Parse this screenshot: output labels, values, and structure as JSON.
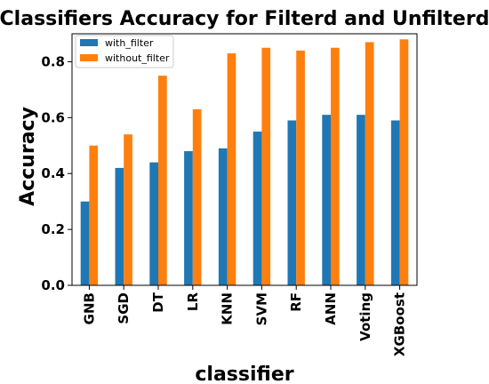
{
  "chart_data": {
    "type": "bar",
    "title": "Classifiers Accuracy for Filterd and Unfilterd",
    "xlabel": "classifier",
    "ylabel": "Accuracy",
    "categories": [
      "GNB",
      "SGD",
      "DT",
      "LR",
      "KNN",
      "SVM",
      "RF",
      "ANN",
      "Voting",
      "XGBoost"
    ],
    "series": [
      {
        "name": "with_filter",
        "color": "#1f77b4",
        "values": [
          0.3,
          0.42,
          0.44,
          0.48,
          0.49,
          0.55,
          0.59,
          0.61,
          0.61,
          0.59
        ]
      },
      {
        "name": "without_filter",
        "color": "#ff7f0e",
        "values": [
          0.5,
          0.54,
          0.75,
          0.63,
          0.83,
          0.85,
          0.84,
          0.85,
          0.87,
          0.88
        ]
      }
    ],
    "ylim": [
      0,
      0.9
    ],
    "yticks": [
      "0.0",
      "0.2",
      "0.4",
      "0.6",
      "0.8"
    ],
    "legend": "top-left",
    "grid": false
  }
}
